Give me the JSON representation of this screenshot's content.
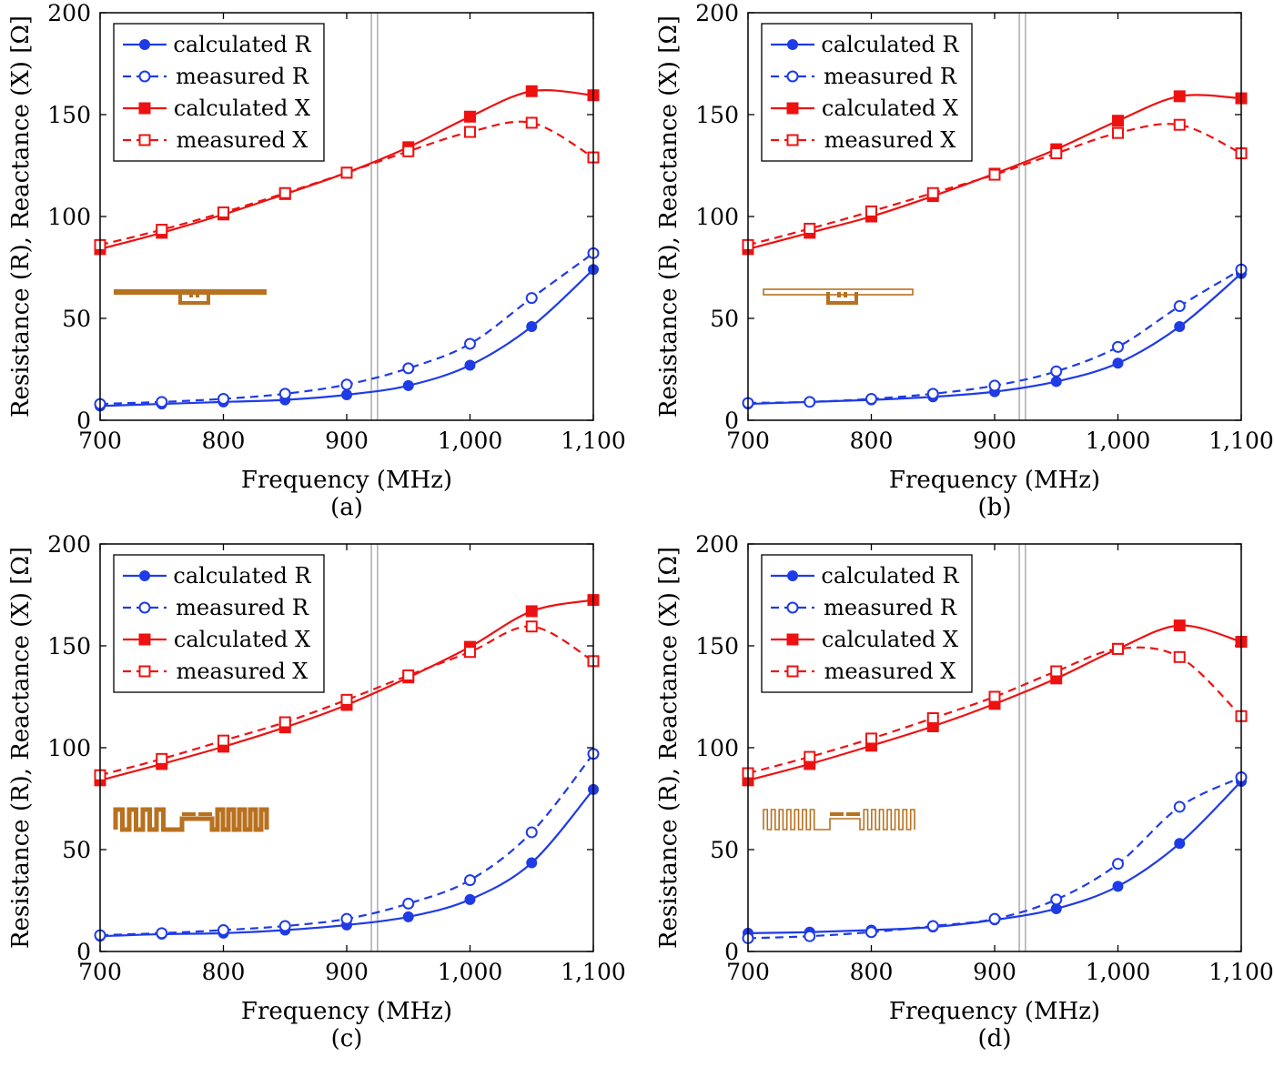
{
  "colors": {
    "blue": "#1f3be6",
    "red": "#ee1111",
    "antenna": "#b8711f"
  },
  "chart_data": [
    {
      "type": "line",
      "caption": "(a)",
      "xlabel": "Frequency (MHz)",
      "ylabel": "Resistance (R), Reactance (X) [Ω]",
      "xlim": [
        700,
        1100
      ],
      "ylim": [
        0,
        200
      ],
      "xticks": [
        700,
        800,
        900,
        1000,
        1100
      ],
      "xtick_labels": [
        "700",
        "800",
        "900",
        "1,000",
        "1,100"
      ],
      "yticks": [
        0,
        50,
        100,
        150,
        200
      ],
      "ytick_labels": [
        "0",
        "50",
        "100",
        "150",
        "200"
      ],
      "vlines": [
        920,
        925
      ],
      "legend_position": "top-left",
      "antenna": "dipole",
      "x": [
        700,
        750,
        800,
        850,
        900,
        950,
        1000,
        1050,
        1100
      ],
      "series": [
        {
          "name": "calculated R",
          "color": "#1f3be6",
          "dashed": false,
          "marker": "filled-circle",
          "values": [
            7,
            8,
            9,
            10,
            12.5,
            17,
            27,
            46,
            74
          ]
        },
        {
          "name": "measured R",
          "color": "#1f3be6",
          "dashed": true,
          "marker": "open-circle",
          "values": [
            8,
            9,
            10.5,
            13,
            17.5,
            25.5,
            37.5,
            60,
            82
          ]
        },
        {
          "name": "calculated X",
          "color": "#ee1111",
          "dashed": false,
          "marker": "filled-square",
          "values": [
            84,
            92,
            101,
            111,
            121.5,
            134,
            149,
            161.5,
            159.5
          ]
        },
        {
          "name": "measured X",
          "color": "#ee1111",
          "dashed": true,
          "marker": "open-square",
          "values": [
            86,
            93.5,
            102,
            111.5,
            121.5,
            132,
            141.5,
            146,
            129
          ]
        }
      ]
    },
    {
      "type": "line",
      "caption": "(b)",
      "xlabel": "Frequency (MHz)",
      "ylabel": "Resistance (R), Reactance (X) [Ω]",
      "xlim": [
        700,
        1100
      ],
      "ylim": [
        0,
        200
      ],
      "xticks": [
        700,
        800,
        900,
        1000,
        1100
      ],
      "xtick_labels": [
        "700",
        "800",
        "900",
        "1,000",
        "1,100"
      ],
      "yticks": [
        0,
        50,
        100,
        150,
        200
      ],
      "ytick_labels": [
        "0",
        "50",
        "100",
        "150",
        "200"
      ],
      "vlines": [
        920,
        925
      ],
      "legend_position": "top-left",
      "antenna": "dipole-outline",
      "x": [
        700,
        750,
        800,
        850,
        900,
        950,
        1000,
        1050,
        1100
      ],
      "series": [
        {
          "name": "calculated R",
          "color": "#1f3be6",
          "dashed": false,
          "marker": "filled-circle",
          "values": [
            8,
            9,
            10,
            11.5,
            14,
            19,
            28,
            46,
            72
          ]
        },
        {
          "name": "measured R",
          "color": "#1f3be6",
          "dashed": true,
          "marker": "open-circle",
          "values": [
            8.5,
            9,
            10.5,
            13,
            17,
            24,
            36,
            56,
            74
          ]
        },
        {
          "name": "calculated X",
          "color": "#ee1111",
          "dashed": false,
          "marker": "filled-square",
          "values": [
            84,
            92,
            100,
            110,
            121,
            133,
            147,
            159,
            158
          ]
        },
        {
          "name": "measured X",
          "color": "#ee1111",
          "dashed": true,
          "marker": "open-square",
          "values": [
            86,
            94,
            102.5,
            111.5,
            120.5,
            131,
            141,
            145,
            131
          ]
        }
      ]
    },
    {
      "type": "line",
      "caption": "(c)",
      "xlabel": "Frequency (MHz)",
      "ylabel": "Resistance (R), Reactance (X) [Ω]",
      "xlim": [
        700,
        1100
      ],
      "ylim": [
        0,
        200
      ],
      "xticks": [
        700,
        800,
        900,
        1000,
        1100
      ],
      "xtick_labels": [
        "700",
        "800",
        "900",
        "1,000",
        "1,100"
      ],
      "yticks": [
        0,
        50,
        100,
        150,
        200
      ],
      "ytick_labels": [
        "0",
        "50",
        "100",
        "150",
        "200"
      ],
      "vlines": [
        920,
        925
      ],
      "legend_position": "top-left",
      "antenna": "meander",
      "x": [
        700,
        750,
        800,
        850,
        900,
        950,
        1000,
        1050,
        1100
      ],
      "series": [
        {
          "name": "calculated R",
          "color": "#1f3be6",
          "dashed": false,
          "marker": "filled-circle",
          "values": [
            7.5,
            8.5,
            9,
            10.5,
            13,
            17,
            25.5,
            43.5,
            79.5
          ]
        },
        {
          "name": "measured R",
          "color": "#1f3be6",
          "dashed": true,
          "marker": "open-circle",
          "values": [
            8,
            9,
            10.5,
            12.5,
            16,
            23.5,
            35,
            58.5,
            97
          ]
        },
        {
          "name": "calculated X",
          "color": "#ee1111",
          "dashed": false,
          "marker": "filled-square",
          "values": [
            84,
            92,
            100.5,
            110,
            121,
            134.5,
            149.5,
            167,
            172.5
          ]
        },
        {
          "name": "measured X",
          "color": "#ee1111",
          "dashed": true,
          "marker": "open-square",
          "values": [
            86.5,
            94.5,
            103.5,
            112.5,
            123.5,
            135.5,
            147,
            159.5,
            142.5
          ]
        }
      ]
    },
    {
      "type": "line",
      "caption": "(d)",
      "xlabel": "Frequency (MHz)",
      "ylabel": "Resistance (R), Reactance (X) [Ω]",
      "xlim": [
        700,
        1100
      ],
      "ylim": [
        0,
        200
      ],
      "xticks": [
        700,
        800,
        900,
        1000,
        1100
      ],
      "xtick_labels": [
        "700",
        "800",
        "900",
        "1,000",
        "1,100"
      ],
      "yticks": [
        0,
        50,
        100,
        150,
        200
      ],
      "ytick_labels": [
        "0",
        "50",
        "100",
        "150",
        "200"
      ],
      "vlines": [
        920,
        925
      ],
      "legend_position": "top-left",
      "antenna": "meander-outline",
      "x": [
        700,
        750,
        800,
        850,
        900,
        950,
        1000,
        1050,
        1100
      ],
      "series": [
        {
          "name": "calculated R",
          "color": "#1f3be6",
          "dashed": false,
          "marker": "filled-circle",
          "values": [
            9,
            9.5,
            10.5,
            12,
            15.5,
            21,
            32,
            53,
            83.5
          ]
        },
        {
          "name": "measured R",
          "color": "#1f3be6",
          "dashed": true,
          "marker": "open-circle",
          "values": [
            6.5,
            7.5,
            9.5,
            12.5,
            16,
            25.5,
            43,
            71,
            85.5
          ]
        },
        {
          "name": "calculated X",
          "color": "#ee1111",
          "dashed": false,
          "marker": "filled-square",
          "values": [
            84,
            92,
            101,
            110.5,
            121.5,
            134,
            148.5,
            160,
            152
          ]
        },
        {
          "name": "measured X",
          "color": "#ee1111",
          "dashed": true,
          "marker": "open-square",
          "values": [
            87.5,
            95.5,
            104.5,
            114.5,
            125,
            137.5,
            148.5,
            144.5,
            115.5
          ]
        }
      ]
    }
  ]
}
